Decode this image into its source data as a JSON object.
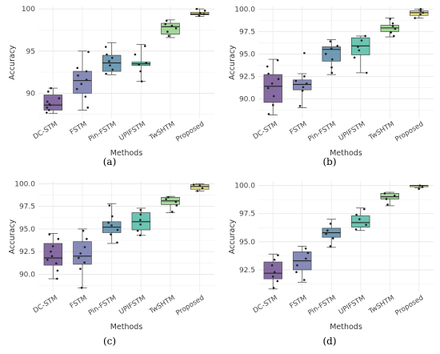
{
  "colors": {
    "DC-STM": "#6a4a8c",
    "FSTM": "#6c72a8",
    "Pin-FSTM": "#4f86a4",
    "UPIFSTM": "#4bb8a2",
    "TwSHTM": "#8fd083",
    "Proposed": "#e8e16a"
  },
  "chart_data": [
    {
      "caption": "(a)",
      "type": "box",
      "xlabel": "Methods",
      "ylabel": "Accuracy",
      "ylim": [
        87.0,
        100.3
      ],
      "yticks": [
        "90",
        "95",
        "100"
      ],
      "ytick_values": [
        90,
        95,
        100
      ],
      "categories": [
        "DC-STM",
        "FSTM",
        "Pin-FSTM",
        "UPIFSTM",
        "TwSHTM",
        "Proposed"
      ],
      "boxes": [
        {
          "min": 87.6,
          "q1": 88.0,
          "median": 88.6,
          "q3": 89.8,
          "max": 90.6,
          "points": [
            87.7,
            88.0,
            88.3,
            88.6,
            88.7,
            89.0,
            89.4,
            90.2,
            90.6
          ]
        },
        {
          "min": 88.0,
          "q1": 90.0,
          "median": 91.5,
          "q3": 92.6,
          "max": 95.0,
          "points": [
            88.3,
            89.6,
            90.5,
            91.1,
            91.6,
            92.1,
            92.6,
            93.0,
            94.9
          ]
        },
        {
          "min": 92.2,
          "q1": 92.6,
          "median": 93.6,
          "q3": 94.5,
          "max": 96.0,
          "points": [
            92.3,
            92.8,
            93.3,
            93.8,
            94.2,
            94.6,
            95.5
          ]
        },
        {
          "min": 91.4,
          "q1": 93.3,
          "median": 93.5,
          "q3": 93.7,
          "max": 95.8,
          "points": [
            91.4,
            92.6,
            93.4,
            93.6,
            94.6,
            95.6
          ]
        },
        {
          "min": 96.6,
          "q1": 97.0,
          "median": 97.9,
          "q3": 98.3,
          "max": 98.7,
          "points": [
            96.8,
            97.3,
            97.7,
            98.0,
            98.2,
            98.6
          ]
        },
        {
          "min": 99.1,
          "q1": 99.3,
          "median": 99.4,
          "q3": 99.6,
          "max": 100.0,
          "points": [
            99.2,
            99.4,
            99.5,
            99.8,
            100.0
          ]
        }
      ]
    },
    {
      "caption": "(b)",
      "type": "box",
      "xlabel": "Methods",
      "ylabel": "Accuracy",
      "ylim": [
        87.8,
        100.3
      ],
      "yticks": [
        "90.0",
        "92.5",
        "95.0",
        "97.5",
        "100.0"
      ],
      "ytick_values": [
        90.0,
        92.5,
        95.0,
        97.5,
        100.0
      ],
      "categories": [
        "DC-STM",
        "FSTM",
        "Pin-FSTM",
        "UPIFSTM",
        "TwSHTM",
        "Proposed"
      ],
      "boxes": [
        {
          "min": 88.2,
          "q1": 89.6,
          "median": 91.4,
          "q3": 92.7,
          "max": 94.4,
          "points": [
            88.3,
            89.3,
            90.3,
            91.2,
            91.7,
            92.2,
            92.8,
            93.6,
            94.3
          ]
        },
        {
          "min": 89.0,
          "q1": 91.0,
          "median": 91.6,
          "q3": 92.1,
          "max": 92.8,
          "points": [
            89.2,
            90.9,
            91.3,
            91.7,
            92.0,
            92.5,
            95.1
          ]
        },
        {
          "min": 92.7,
          "q1": 94.2,
          "median": 95.5,
          "q3": 95.8,
          "max": 96.6,
          "points": [
            92.9,
            93.5,
            94.4,
            95.0,
            95.6,
            95.9,
            96.4
          ]
        },
        {
          "min": 92.9,
          "q1": 94.9,
          "median": 95.9,
          "q3": 96.8,
          "max": 97.0,
          "points": [
            92.9,
            94.6,
            95.4,
            95.8,
            96.5,
            97.0
          ]
        },
        {
          "min": 96.9,
          "q1": 97.5,
          "median": 97.9,
          "q3": 98.2,
          "max": 99.0,
          "points": [
            97.0,
            97.4,
            97.8,
            98.1,
            98.4,
            98.9
          ]
        },
        {
          "min": 99.0,
          "q1": 99.3,
          "median": 99.6,
          "q3": 99.8,
          "max": 100.0,
          "points": [
            99.0,
            99.4,
            99.6,
            99.8,
            100.0
          ]
        }
      ]
    },
    {
      "caption": "(c)",
      "type": "box",
      "xlabel": "Methods",
      "ylabel": "Accuracy",
      "ylim": [
        88.0,
        100.3
      ],
      "yticks": [
        "90.0",
        "92.5",
        "95.0",
        "97.5",
        "100.0"
      ],
      "ytick_values": [
        90.0,
        92.5,
        95.0,
        97.5,
        100.0
      ],
      "categories": [
        "DC-STM",
        "FSTM",
        "Pin-FSTM",
        "UPIFSTM",
        "TwSHTM",
        "Proposed"
      ],
      "boxes": [
        {
          "min": 89.5,
          "q1": 91.0,
          "median": 91.8,
          "q3": 93.4,
          "max": 94.5,
          "points": [
            89.5,
            90.4,
            91.2,
            91.6,
            92.0,
            92.5,
            93.1,
            93.9,
            94.4
          ]
        },
        {
          "min": 88.5,
          "q1": 91.1,
          "median": 92.0,
          "q3": 93.6,
          "max": 95.0,
          "points": [
            88.5,
            90.6,
            91.3,
            91.8,
            92.3,
            93.0,
            93.9,
            94.8
          ]
        },
        {
          "min": 93.4,
          "q1": 94.6,
          "median": 95.2,
          "q3": 95.8,
          "max": 97.8,
          "points": [
            93.5,
            94.4,
            94.9,
            95.4,
            95.7,
            96.4,
            97.6
          ]
        },
        {
          "min": 94.3,
          "q1": 94.9,
          "median": 95.8,
          "q3": 96.8,
          "max": 97.3,
          "points": [
            94.3,
            94.8,
            95.5,
            96.0,
            96.6,
            97.1
          ]
        },
        {
          "min": 96.8,
          "q1": 97.7,
          "median": 98.1,
          "q3": 98.5,
          "max": 98.6,
          "points": [
            96.9,
            97.6,
            98.0,
            98.3,
            98.5
          ]
        },
        {
          "min": 99.2,
          "q1": 99.4,
          "median": 99.7,
          "q3": 99.9,
          "max": 100.0,
          "points": [
            99.2,
            99.5,
            99.8,
            99.9
          ]
        }
      ]
    },
    {
      "caption": "(d)",
      "type": "box",
      "xlabel": "Methods",
      "ylabel": "Accuracy",
      "ylim": [
        90.5,
        100.4
      ],
      "yticks": [
        "92.5",
        "95.0",
        "97.5",
        "100.0"
      ],
      "ytick_values": [
        92.5,
        95.0,
        97.5,
        100.0
      ],
      "categories": [
        "DC-STM",
        "FSTM",
        "Pin-FSTM",
        "UPIFSTM",
        "TwSHTM",
        "Proposed"
      ],
      "boxes": [
        {
          "min": 90.8,
          "q1": 91.7,
          "median": 92.2,
          "q3": 93.2,
          "max": 93.9,
          "points": [
            90.9,
            91.5,
            91.9,
            92.3,
            92.9,
            93.4,
            93.8
          ]
        },
        {
          "min": 91.4,
          "q1": 92.5,
          "median": 93.3,
          "q3": 94.1,
          "max": 94.6,
          "points": [
            91.6,
            92.3,
            92.9,
            93.5,
            94.0,
            94.4
          ]
        },
        {
          "min": 94.5,
          "q1": 95.4,
          "median": 95.8,
          "q3": 96.2,
          "max": 97.0,
          "points": [
            94.6,
            95.3,
            95.7,
            96.0,
            96.6
          ]
        },
        {
          "min": 96.0,
          "q1": 96.3,
          "median": 96.7,
          "q3": 97.3,
          "max": 98.0,
          "points": [
            96.1,
            96.5,
            97.0,
            97.4,
            97.9
          ]
        },
        {
          "min": 98.2,
          "q1": 98.8,
          "median": 99.0,
          "q3": 99.3,
          "max": 99.4,
          "points": [
            98.3,
            98.8,
            99.1,
            99.3
          ]
        },
        {
          "min": 99.8,
          "q1": 99.9,
          "median": 100.0,
          "q3": 100.0,
          "max": 100.0,
          "points": [
            99.7,
            99.9,
            100.0
          ]
        }
      ]
    }
  ]
}
